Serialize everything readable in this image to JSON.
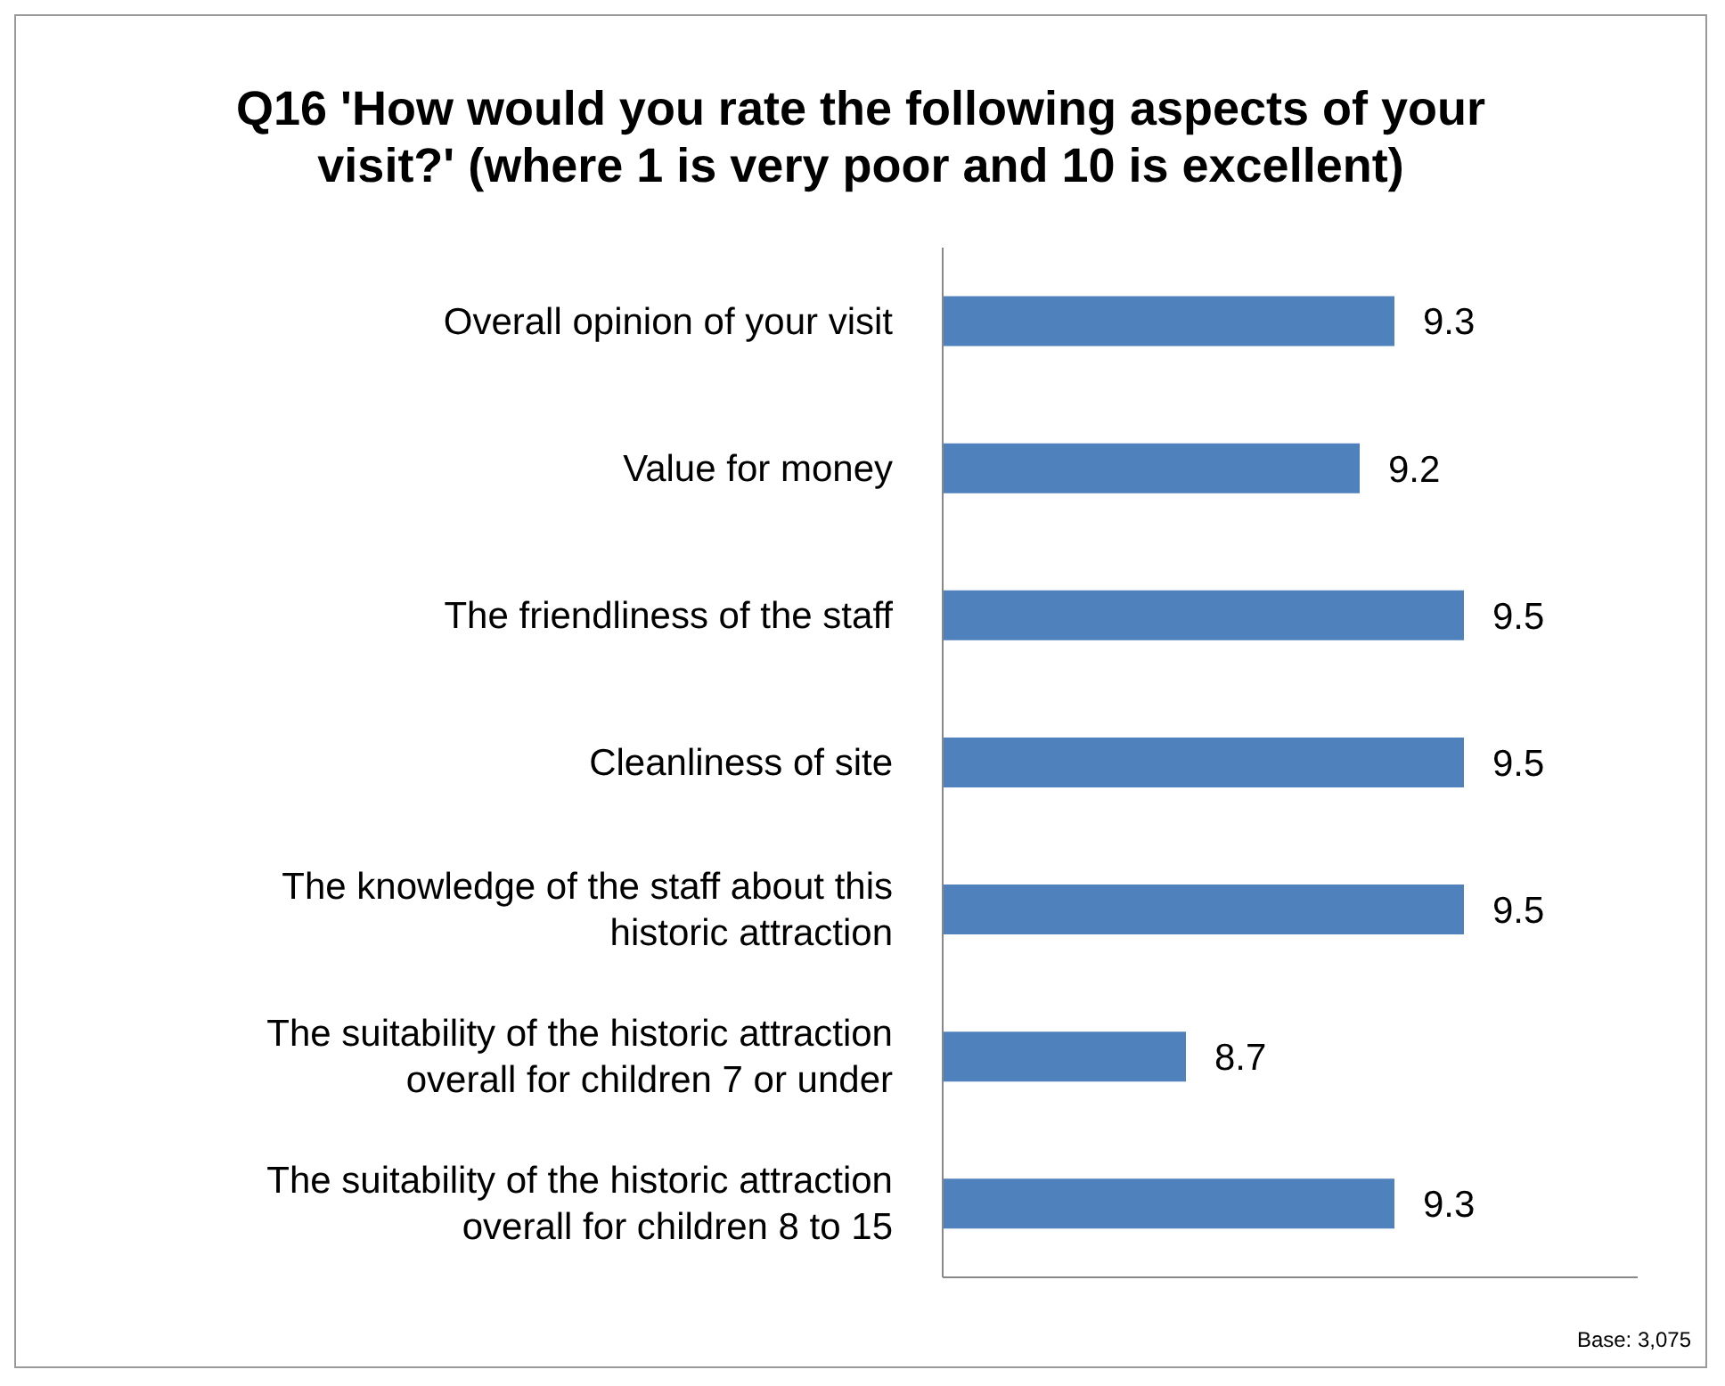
{
  "chart_data": {
    "type": "bar",
    "orientation": "horizontal",
    "title": "Q16 'How would you rate the following aspects of your visit?' (where 1 is very poor and 10 is excellent)",
    "categories": [
      "Overall opinion of your visit",
      "Value for money",
      "The friendliness of the staff",
      "Cleanliness of site",
      "The knowledge of the staff about this historic attraction",
      "The suitability of the historic attraction overall for children 7 or under",
      "The suitability of the historic attraction overall for children 8 to 15"
    ],
    "values": [
      9.3,
      9.2,
      9.5,
      9.5,
      9.5,
      8.7,
      9.3
    ],
    "color": "#4f81bd",
    "xlim": [
      8,
      10
    ],
    "data_labels": true,
    "annotations": [
      "Base: 3,075"
    ]
  }
}
